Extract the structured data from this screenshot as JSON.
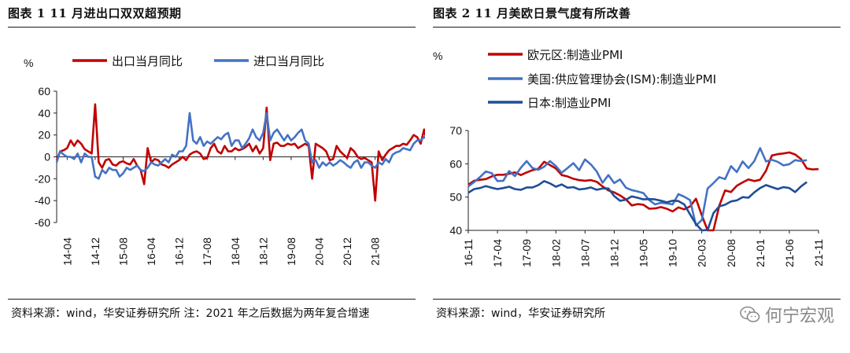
{
  "left": {
    "title": "图表 1 11 月进出口双双超预期",
    "source": "资料来源：wind，华安证券研究所 注：2021 年之后数据为两年复合增速"
  },
  "right": {
    "title": "图表 2 11 月美欧日景气度有所改善",
    "source": "资料来源：wind，华安证券研究所"
  },
  "watermark": {
    "text": "何宁宏观",
    "icon": "wechat-icon"
  },
  "chart_data": [
    {
      "type": "line",
      "unit_label": "%",
      "ylim": [
        -60,
        60
      ],
      "yticks": [
        -60,
        -40,
        -20,
        0,
        20,
        40,
        60
      ],
      "x_tick_labels": [
        "14-04",
        "14-12",
        "15-08",
        "16-04",
        "16-12",
        "17-08",
        "18-04",
        "18-12",
        "19-08",
        "20-04",
        "20-12",
        "21-08"
      ],
      "x_start": "2014-01",
      "x_end": "2021-11",
      "grid": false,
      "legend_position": "top",
      "series": [
        {
          "name": "出口当月同比",
          "color": "#c00000",
          "values": [
            -3,
            5,
            6,
            8,
            15,
            10,
            15,
            12,
            7,
            5,
            3,
            48,
            -5,
            -10,
            -3,
            -2,
            -7,
            -8,
            -5,
            -4,
            -6,
            -7,
            -2,
            -8,
            -12,
            -25,
            8,
            -5,
            -2,
            -3,
            -7,
            -8,
            -10,
            -7,
            -5,
            -3,
            0,
            -3,
            2,
            4,
            5,
            3,
            -2,
            -1,
            8,
            12,
            5,
            3,
            10,
            5,
            5,
            8,
            6,
            7,
            9,
            12,
            5,
            10,
            3,
            8,
            45,
            -3,
            12,
            13,
            10,
            10,
            12,
            11,
            12,
            8,
            10,
            12,
            10,
            -20,
            12,
            10,
            8,
            5,
            -3,
            -2,
            10,
            5,
            2,
            -1,
            8,
            5,
            0,
            -2,
            -1,
            -3,
            -5,
            -40,
            5,
            -3,
            2,
            6,
            8,
            10,
            10,
            12,
            11,
            15,
            20,
            18,
            12,
            25,
            10,
            15,
            16,
            15,
            13,
            18,
            20,
            20,
            22
          ]
        },
        {
          "name": "进口当月同比",
          "color": "#4472c4",
          "values": [
            -5,
            5,
            2,
            0,
            0,
            -2,
            3,
            -5,
            3,
            0,
            0,
            -18,
            -20,
            -12,
            -15,
            -10,
            -12,
            -12,
            -18,
            -15,
            -10,
            -12,
            -10,
            -8,
            -12,
            -13,
            -10,
            -5,
            -7,
            -8,
            -5,
            -2,
            -5,
            2,
            0,
            5,
            5,
            10,
            40,
            15,
            12,
            18,
            10,
            14,
            12,
            15,
            18,
            16,
            20,
            22,
            10,
            15,
            15,
            8,
            12,
            17,
            25,
            18,
            15,
            22,
            40,
            15,
            22,
            25,
            20,
            15,
            20,
            15,
            18,
            22,
            25,
            15,
            12,
            -5,
            -3,
            -10,
            -5,
            -8,
            -5,
            -8,
            -6,
            -3,
            -5,
            -8,
            -10,
            -5,
            -3,
            -10,
            -5,
            -5,
            -8,
            -10,
            -5,
            -7,
            -2,
            -5,
            2,
            4,
            5,
            8,
            7,
            6,
            12,
            15,
            15,
            18,
            16,
            14,
            12,
            18,
            15,
            14,
            18,
            16,
            18,
            14,
            16
          ]
        }
      ]
    },
    {
      "type": "line",
      "unit_label": "%",
      "ylim": [
        40,
        70
      ],
      "yticks": [
        40,
        50,
        60,
        70
      ],
      "x_tick_labels": [
        "16-11",
        "17-04",
        "17-09",
        "18-02",
        "18-07",
        "18-12",
        "19-05",
        "19-10",
        "20-03",
        "20-08",
        "21-01",
        "21-06",
        "21-11"
      ],
      "x_start": "2016-11",
      "x_end": "2021-11",
      "grid": false,
      "legend_position": "top-left",
      "series": [
        {
          "name": "欧元区:制造业PMI",
          "color": "#c00000",
          "values": [
            53.7,
            54.9,
            55.2,
            55.4,
            56.2,
            56.7,
            56.7,
            57.0,
            57.4,
            56.6,
            57.4,
            58.1,
            58.5,
            60.6,
            59.6,
            58.6,
            56.6,
            56.2,
            55.5,
            55.1,
            54.9,
            55.1,
            54.6,
            53.2,
            52.0,
            51.4,
            50.5,
            49.3,
            47.5,
            47.9,
            47.7,
            46.5,
            46.6,
            47.0,
            46.5,
            45.7,
            46.9,
            46.3,
            47.2,
            49.5,
            44.5,
            33.4,
            39.4,
            47.4,
            52.0,
            51.5,
            53.4,
            54.4,
            55.3,
            54.8,
            55.2,
            57.9,
            62.5,
            62.9,
            63.1,
            63.4,
            62.8,
            61.4,
            58.6,
            58.3,
            58.4
          ]
        },
        {
          "name": "美国:供应管理协会(ISM):制造业PMI",
          "color": "#4472c4",
          "values": [
            53.2,
            54.5,
            56.0,
            57.7,
            57.2,
            54.8,
            54.9,
            57.8,
            56.3,
            58.8,
            60.8,
            58.7,
            58.2,
            59.1,
            60.8,
            59.3,
            57.3,
            58.7,
            60.2,
            58.1,
            61.3,
            59.8,
            57.7,
            54.3,
            56.6,
            54.2,
            55.3,
            52.8,
            52.1,
            51.7,
            51.2,
            49.1,
            47.8,
            48.3,
            48.1,
            47.8,
            50.9,
            50.1,
            49.1,
            41.5,
            43.1,
            52.6,
            54.2,
            56.0,
            55.4,
            59.3,
            57.5,
            60.7,
            58.7,
            60.8,
            64.7,
            60.7,
            61.2,
            60.6,
            59.5,
            59.9,
            61.1,
            60.8,
            61.1
          ]
        },
        {
          "name": "日本:制造业PMI",
          "color": "#1f4e96",
          "values": [
            51.3,
            52.4,
            52.7,
            53.3,
            52.8,
            52.4,
            52.7,
            53.1,
            52.4,
            52.2,
            52.9,
            52.9,
            53.6,
            54.8,
            54.1,
            53.1,
            53.8,
            52.8,
            53.0,
            52.3,
            52.5,
            52.9,
            52.2,
            52.6,
            52.6,
            50.3,
            48.9,
            49.2,
            50.2,
            49.8,
            49.3,
            49.4,
            49.3,
            48.9,
            48.4,
            48.9,
            48.8,
            47.8,
            44.8,
            41.9,
            38.4,
            40.1,
            45.2,
            47.2,
            47.7,
            48.7,
            49.0,
            50.0,
            49.8,
            51.4,
            52.7,
            53.6,
            53.0,
            52.4,
            53.0,
            52.7,
            51.5,
            53.2,
            54.5
          ]
        }
      ]
    }
  ]
}
